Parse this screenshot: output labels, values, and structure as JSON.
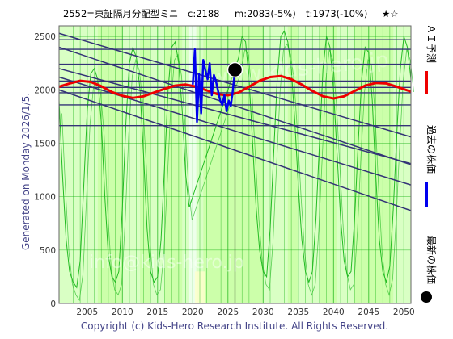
{
  "header": {
    "ticker": "2552=東証隔月分配型ミニ",
    "current": "c:2188",
    "median": "m:2083(-5%)",
    "target": "t:1973(-10%)",
    "stars": "★☆"
  },
  "side_label": "Generated on Monday 2026/1/5.",
  "footer": "Copyright (c) Kids-Hero Research Institute. All Rights Reserved.",
  "watermark": {
    "url": "www.kids-hero.jp",
    "email": "info@kids-hero.jp"
  },
  "legend": {
    "ai": "ＡＩ予測",
    "past": "過去の株価",
    "latest": "最新の株価"
  },
  "colors": {
    "plot_bg": "#ccffaa",
    "band_light": "#ddffcc",
    "band_pale": "#eeffee",
    "grid": "#00aa00",
    "wave": "#22bb22",
    "channel": "#333377",
    "ai": "#ee0000",
    "past": "#0000ee",
    "latest": "#000000"
  },
  "chart_data": {
    "type": "line",
    "xlim": [
      2001,
      2051
    ],
    "ylim": [
      0,
      2600
    ],
    "x_ticks": [
      2005,
      2010,
      2015,
      2020,
      2025,
      2030,
      2035,
      2040,
      2045,
      2050
    ],
    "y_ticks": [
      0,
      500,
      1000,
      1500,
      2000,
      2500
    ],
    "latest_point": {
      "x": 2026.0,
      "y": 2188
    },
    "horizontal_levels": [
      1665,
      1860,
      1973,
      2023,
      2083,
      2240,
      2380,
      2470
    ],
    "channel_lines": [
      {
        "x1": 2001,
        "y1": 2530,
        "x2": 2051,
        "y2": 1560
      },
      {
        "x1": 2001,
        "y1": 2400,
        "x2": 2051,
        "y2": 1300
      },
      {
        "x1": 2001,
        "y1": 2200,
        "x2": 2051,
        "y2": 1310
      },
      {
        "x1": 2001,
        "y1": 2120,
        "x2": 2051,
        "y2": 1110
      },
      {
        "x1": 2001,
        "y1": 2000,
        "x2": 2051,
        "y2": 870
      }
    ],
    "series": [
      {
        "role": "ai",
        "x": [
          2001.0,
          2002.5,
          2004.0,
          2005.5,
          2007.0,
          2008.5,
          2010.0,
          2011.5,
          2013.0,
          2014.5,
          2016.0,
          2017.5,
          2019.0,
          2020.5,
          2022.0,
          2023.5,
          2025.0,
          2026.5,
          2028.0,
          2029.5,
          2031.0,
          2032.5,
          2034.0,
          2035.5,
          2037.0,
          2038.5,
          2040.0,
          2041.5,
          2043.0,
          2044.5,
          2046.0,
          2047.5,
          2049.0,
          2050.5,
          2051.0
        ],
        "values": [
          2030,
          2060,
          2085,
          2075,
          2035,
          1980,
          1945,
          1925,
          1940,
          1975,
          2010,
          2040,
          2050,
          2030,
          1995,
          1960,
          1950,
          1975,
          2030,
          2085,
          2120,
          2130,
          2100,
          2050,
          1990,
          1940,
          1920,
          1940,
          1990,
          2040,
          2065,
          2060,
          2030,
          1995,
          1985
        ]
      },
      {
        "role": "past",
        "x": [
          2020.0,
          2020.3,
          2020.6,
          2020.9,
          2021.2,
          2021.5,
          2021.8,
          2022.1,
          2022.4,
          2022.7,
          2023.0,
          2023.3,
          2023.6,
          2023.9,
          2024.2,
          2024.5,
          2024.8,
          2025.1,
          2025.4,
          2025.7,
          2026.0
        ],
        "values": [
          2050,
          2380,
          1700,
          2150,
          1780,
          2280,
          2180,
          2100,
          2250,
          1950,
          2140,
          2080,
          1990,
          1900,
          1860,
          1950,
          1800,
          1900,
          1850,
          2000,
          2188
        ]
      },
      {
        "role": "wave",
        "x": [
          2001.0,
          2001.5,
          2002.0,
          2002.5,
          2003.0,
          2003.5,
          2004.0,
          2004.5,
          2005.0,
          2005.5,
          2006.0,
          2006.5,
          2007.0,
          2007.5,
          2008.0,
          2008.5,
          2009.0,
          2009.5,
          2010.0,
          2010.5,
          2011.0,
          2011.5,
          2012.0,
          2012.5,
          2013.0,
          2013.5,
          2014.0,
          2014.5,
          2015.0,
          2015.5,
          2016.0,
          2016.5,
          2017.0,
          2017.5,
          2018.0,
          2018.5,
          2019.0,
          2019.5,
          2026.5,
          2027.0,
          2027.5,
          2028.0,
          2028.5,
          2029.0,
          2029.5,
          2030.0,
          2030.5,
          2031.0,
          2031.5,
          2032.0,
          2032.5,
          2033.0,
          2033.5,
          2034.0,
          2034.5,
          2035.0,
          2035.5,
          2036.0,
          2036.5,
          2037.0,
          2037.5,
          2038.0,
          2038.5,
          2039.0,
          2039.5,
          2040.0,
          2040.5,
          2041.0,
          2041.5,
          2042.0,
          2042.5,
          2043.0,
          2043.5,
          2044.0,
          2044.5,
          2045.0,
          2045.5,
          2046.0,
          2046.5,
          2047.0,
          2047.5,
          2048.0,
          2048.5,
          2049.0,
          2049.5,
          2050.0,
          2050.5,
          2051.0
        ],
        "values": [
          1900,
          1200,
          600,
          300,
          200,
          150,
          400,
          1100,
          1800,
          2150,
          2200,
          2100,
          1700,
          1000,
          450,
          250,
          200,
          300,
          900,
          1700,
          2250,
          2400,
          2300,
          2000,
          1400,
          700,
          300,
          200,
          250,
          600,
          1300,
          2000,
          2400,
          2450,
          2250,
          1800,
          1200,
          900,
          2300,
          2500,
          2450,
          2100,
          1500,
          900,
          500,
          300,
          250,
          700,
          1400,
          2100,
          2500,
          2550,
          2450,
          2200,
          1700,
          1100,
          600,
          300,
          200,
          300,
          800,
          1500,
          2200,
          2500,
          2400,
          2000,
          1400,
          800,
          400,
          250,
          300,
          800,
          1500,
          2100,
          2400,
          2350,
          1900,
          1200,
          600,
          300,
          200,
          350,
          900,
          1600,
          2200,
          2500,
          2400,
          2100
        ]
      }
    ],
    "bands": [
      {
        "x0": 2001.0,
        "x1": 2006.5,
        "tone": "light"
      },
      {
        "x0": 2010.0,
        "x1": 2012.5,
        "tone": "light"
      },
      {
        "x0": 2014.0,
        "x1": 2016.0,
        "tone": "light"
      },
      {
        "x0": 2018.5,
        "x1": 2021.5,
        "tone": "light"
      },
      {
        "x0": 2019.5,
        "x1": 2020.5,
        "tone": "pale"
      },
      {
        "x0": 2030.0,
        "x1": 2033.5,
        "tone": "light"
      },
      {
        "x0": 2035.0,
        "x1": 2038.0,
        "tone": "light"
      },
      {
        "x0": 2040.5,
        "x1": 2043.0,
        "tone": "light"
      },
      {
        "x0": 2048.5,
        "x1": 2051.0,
        "tone": "light"
      }
    ]
  }
}
